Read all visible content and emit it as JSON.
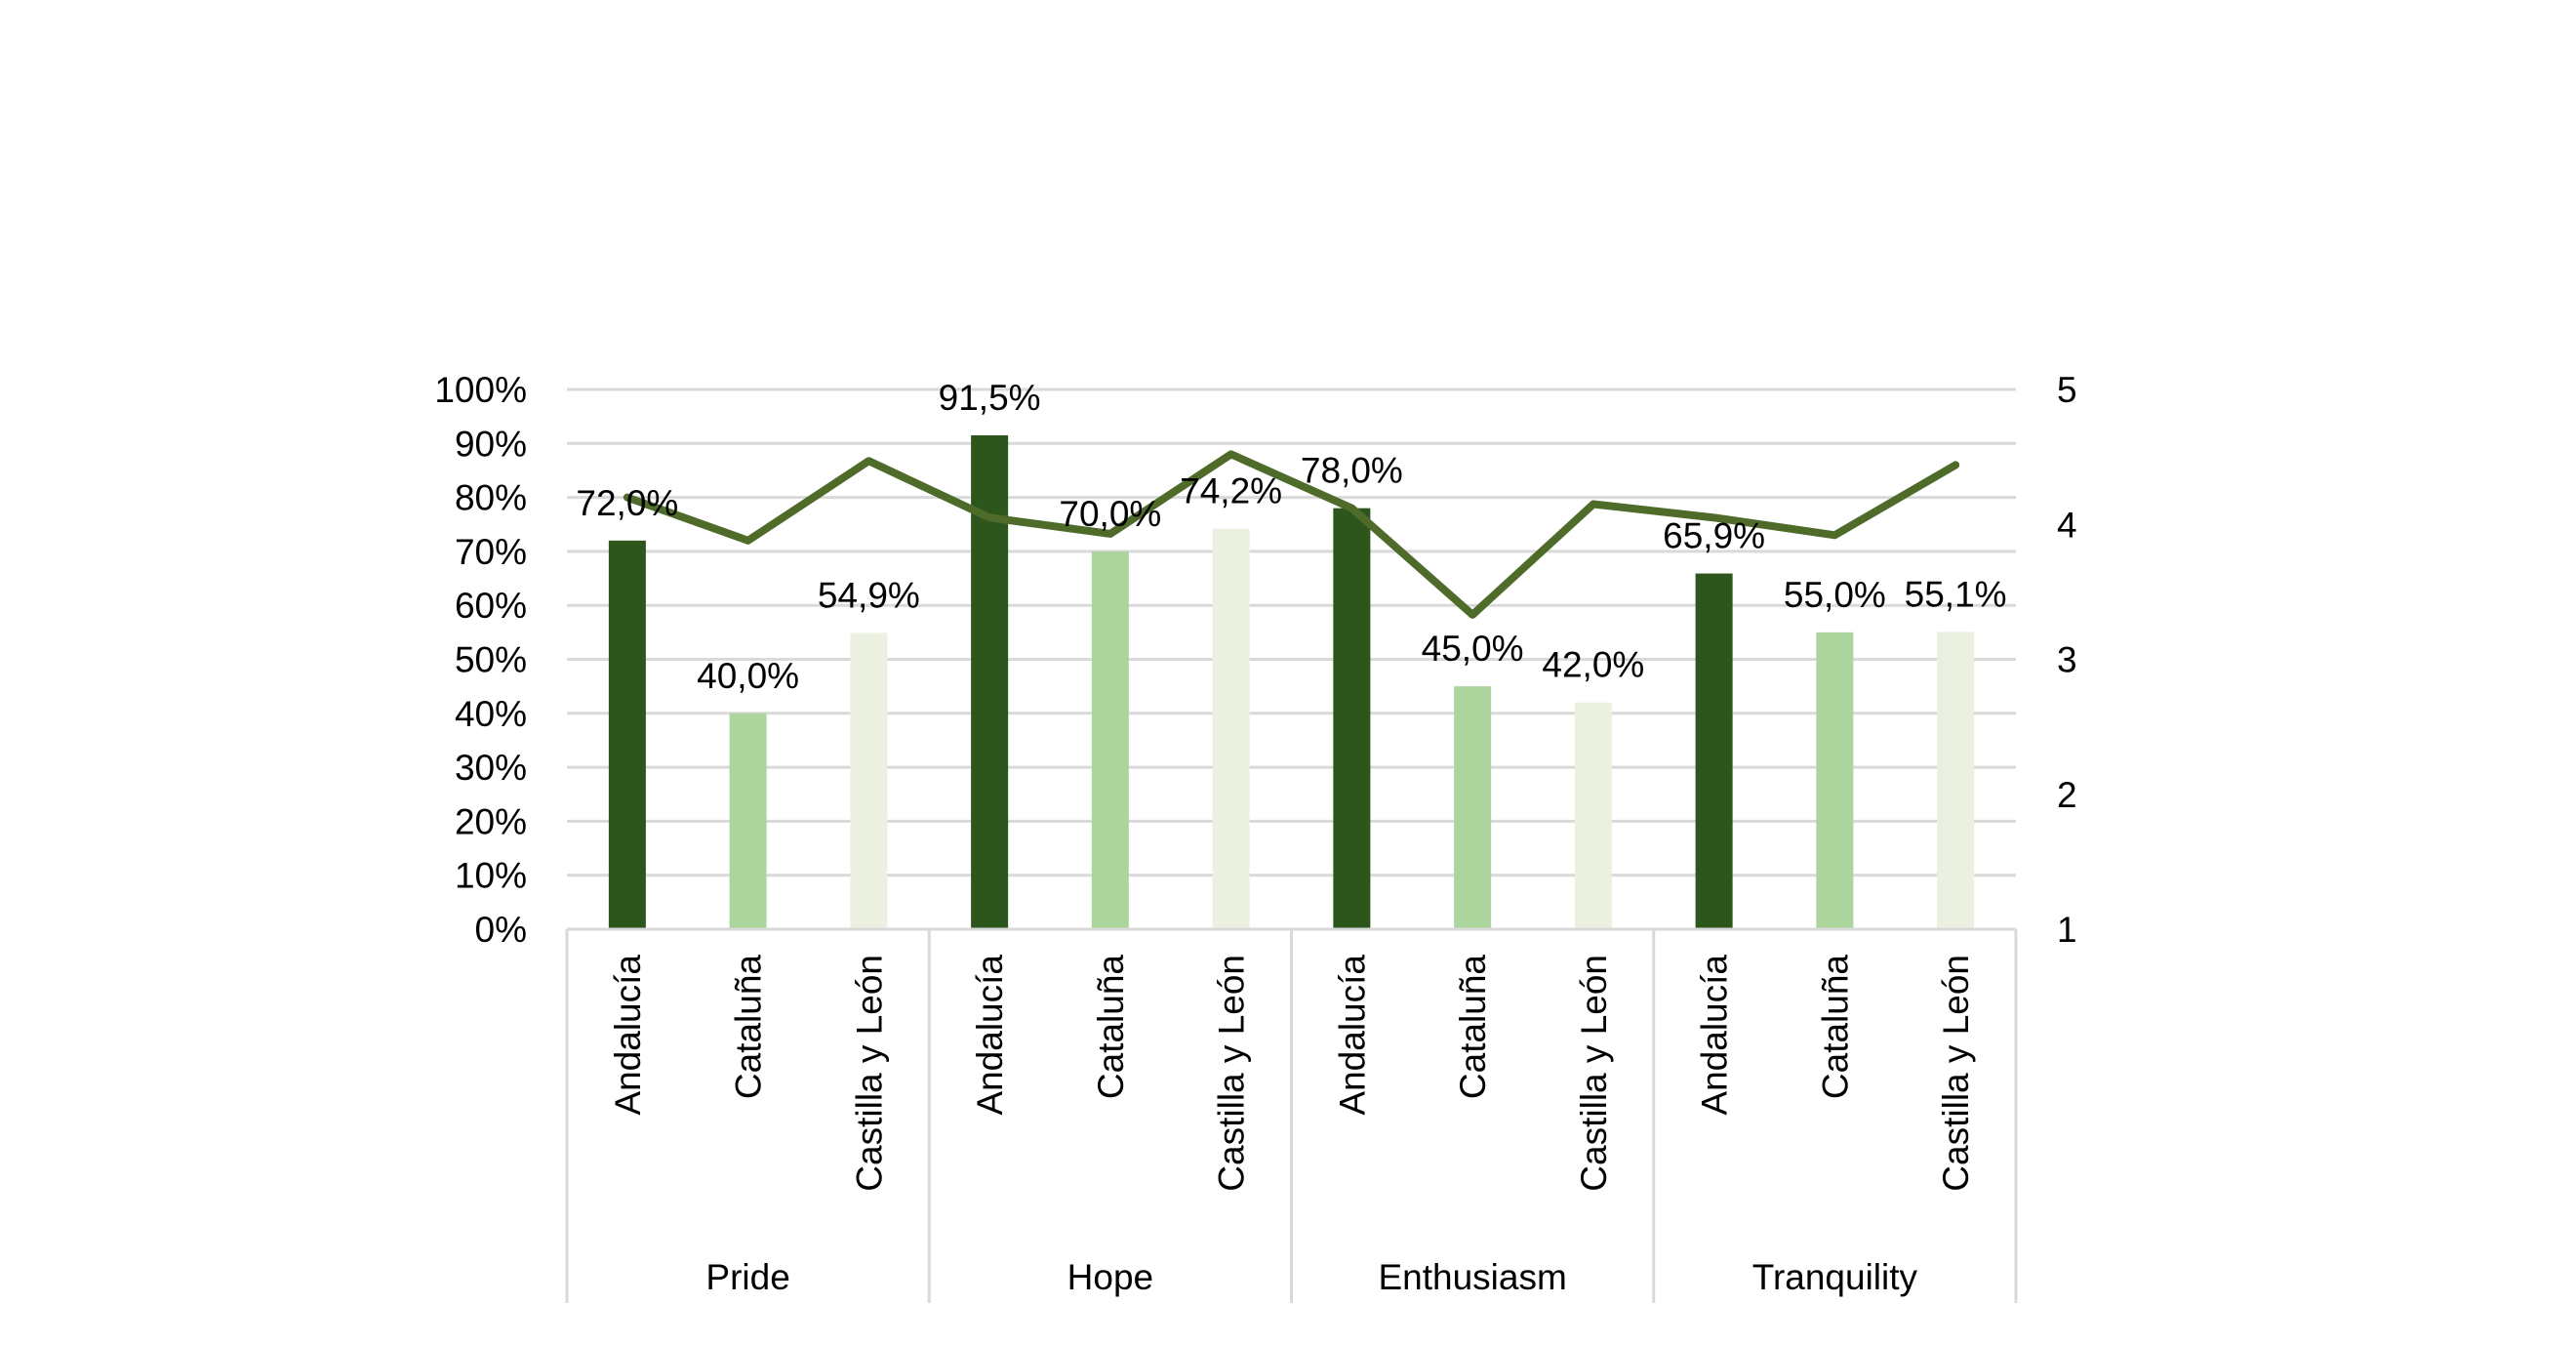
{
  "chart_data": {
    "type": "bar",
    "groups": [
      {
        "label": "Pride",
        "categories": [
          "Andalucía",
          "Cataluña",
          "Castilla y León"
        ]
      },
      {
        "label": "Hope",
        "categories": [
          "Andalucía",
          "Cataluña",
          "Castilla y León"
        ]
      },
      {
        "label": "Enthusiasm",
        "categories": [
          "Andalucía",
          "Cataluña",
          "Castilla y León"
        ]
      },
      {
        "label": "Tranquility",
        "categories": [
          "Andalucía",
          "Cataluña",
          "Castilla y León"
        ]
      }
    ],
    "bar_series": {
      "values": [
        72.0,
        40.0,
        54.9,
        91.5,
        70.0,
        74.2,
        78.0,
        45.0,
        42.0,
        65.9,
        55.0,
        55.1
      ],
      "labels": [
        "72,0%",
        "40,0%",
        "54,9%",
        "91,5%",
        "70,0%",
        "74,2%",
        "78,0%",
        "45,0%",
        "42,0%",
        "65,9%",
        "55,0%",
        "55,1%"
      ],
      "colors_by_category": {
        "Andalucía": "#2c561b",
        "Cataluña": "#acd59e",
        "Castilla y León": "#ebf0e0"
      }
    },
    "line_series": {
      "axis": "right",
      "values": [
        4.2,
        3.88,
        4.47,
        4.05,
        3.93,
        4.52,
        4.12,
        3.33,
        4.15,
        4.05,
        3.92,
        4.44
      ],
      "color": "#4e6b2a"
    },
    "y_left": {
      "ylim": [
        0,
        100
      ],
      "ticks": [
        "0%",
        "10%",
        "20%",
        "30%",
        "40%",
        "50%",
        "60%",
        "70%",
        "80%",
        "90%",
        "100%"
      ]
    },
    "y_right": {
      "ylim": [
        1,
        5
      ],
      "ticks": [
        "1",
        "2",
        "3",
        "4",
        "5"
      ]
    },
    "grid": true,
    "gridline_color": "#d9d9d9",
    "axis_line_color": "#d9d9d9"
  }
}
